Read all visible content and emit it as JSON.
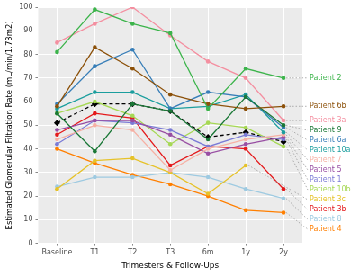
{
  "chart_data": {
    "type": "line",
    "x_label": "Trimesters & Follow-Ups",
    "y_label": "Estimated Glomerular Filtration Rate (mL/min/1.73m2)",
    "categories": [
      "Baseline",
      "T1",
      "T2",
      "T3",
      "6m",
      "1y",
      "2y"
    ],
    "ylim": [
      0,
      100
    ],
    "yticks": [
      0,
      10,
      20,
      30,
      40,
      50,
      60,
      70,
      80,
      90,
      100
    ],
    "grid": true,
    "series": [
      {
        "name": "Patient 2",
        "color": "#3cb44b",
        "marker": "circle",
        "values": [
          81,
          99,
          93,
          89,
          57,
          74,
          70
        ]
      },
      {
        "name": "Patient 6b",
        "color": "#8c510a",
        "marker": "circle",
        "values": [
          58,
          83,
          74,
          63,
          59,
          57,
          58
        ]
      },
      {
        "name": "Patient 3a",
        "color": "#f48fa0",
        "marker": "circle",
        "values": [
          85,
          93,
          100,
          88,
          77,
          70,
          52
        ]
      },
      {
        "name": "Patient 9",
        "color": "#1b7837",
        "marker": "circle",
        "values": [
          55,
          39,
          59,
          56,
          44,
          62,
          50
        ]
      },
      {
        "name": "Patient 6a",
        "color": "#377eb8",
        "marker": "circle",
        "values": [
          59,
          75,
          82,
          57,
          64,
          62,
          49
        ]
      },
      {
        "name": "Patient 10a",
        "color": "#1b9e9e",
        "marker": "circle",
        "values": [
          57,
          64,
          64,
          57,
          58,
          63,
          47
        ]
      },
      {
        "name": "Patient 7",
        "color": "#f6b0a4",
        "marker": "circle",
        "values": [
          44,
          50,
          48,
          31,
          40,
          44,
          46
        ]
      },
      {
        "name": "Patient 5",
        "color": "#984ea3",
        "marker": "circle",
        "values": [
          48,
          52,
          52,
          46,
          38,
          42,
          45
        ]
      },
      {
        "name": "Patient 1",
        "color": "#7b7bd6",
        "marker": "circle",
        "values": [
          42,
          52,
          51,
          48,
          41,
          46,
          44
        ]
      },
      {
        "name": "Patient 10b",
        "color": "#a6d854",
        "marker": "circle",
        "values": [
          55,
          60,
          54,
          42,
          51,
          49,
          41
        ]
      },
      {
        "name": "Patient 3c",
        "color": "#e6c229",
        "marker": "circle",
        "values": [
          23,
          35,
          36,
          30,
          21,
          33,
          null
        ]
      },
      {
        "name": "Patient 3b",
        "color": "#e41a1c",
        "marker": "circle",
        "values": [
          46,
          55,
          53,
          33,
          41,
          40,
          23
        ]
      },
      {
        "name": "Patient 8",
        "color": "#9ecae1",
        "marker": "circle",
        "values": [
          24,
          28,
          28,
          30,
          28,
          23,
          19
        ]
      },
      {
        "name": "Patient 4",
        "color": "#ff7f00",
        "marker": "circle",
        "values": [
          40,
          34,
          29,
          25,
          20,
          14,
          13
        ]
      },
      {
        "color": "#000000",
        "marker": "diamond",
        "line_style": "dashed",
        "values": [
          51,
          59,
          59,
          56,
          45,
          47,
          43
        ]
      }
    ]
  }
}
